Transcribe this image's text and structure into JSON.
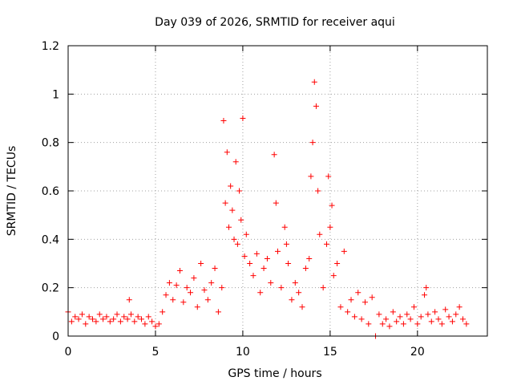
{
  "chart_data": {
    "type": "scatter",
    "title": "Day 039 of 2026, SRMTID for receiver aqui",
    "xlabel": "GPS time / hours",
    "ylabel": "SRMTID / TECUs",
    "xlim": [
      0,
      24
    ],
    "ylim": [
      0,
      1.2
    ],
    "xticks": [
      {
        "value": 0,
        "label": "0"
      },
      {
        "value": 5,
        "label": "5"
      },
      {
        "value": 10,
        "label": "10"
      },
      {
        "value": 15,
        "label": "15"
      },
      {
        "value": 20,
        "label": "20"
      }
    ],
    "yticks": [
      {
        "value": 0,
        "label": "0"
      },
      {
        "value": 0.2,
        "label": "0.2"
      },
      {
        "value": 0.4,
        "label": "0.4"
      },
      {
        "value": 0.6,
        "label": "0.6"
      },
      {
        "value": 0.8,
        "label": "0.8"
      },
      {
        "value": 1.0,
        "label": "1"
      },
      {
        "value": 1.2,
        "label": "1.2"
      }
    ],
    "grid": true,
    "marker": "+",
    "color": "#ff0000",
    "series": [
      {
        "name": "SRMTID",
        "x": [
          0.0,
          0.2,
          0.4,
          0.6,
          0.8,
          1.0,
          1.2,
          1.4,
          1.6,
          1.8,
          2.0,
          2.2,
          2.4,
          2.6,
          2.8,
          3.0,
          3.2,
          3.4,
          3.5,
          3.6,
          3.8,
          4.0,
          4.2,
          4.4,
          4.6,
          4.8,
          5.0,
          5.2,
          5.4,
          5.6,
          5.8,
          6.0,
          6.2,
          6.4,
          6.6,
          6.8,
          7.0,
          7.2,
          7.4,
          7.6,
          7.8,
          8.0,
          8.2,
          8.4,
          8.6,
          8.8,
          8.9,
          9.0,
          9.1,
          9.2,
          9.3,
          9.4,
          9.5,
          9.6,
          9.7,
          9.8,
          9.9,
          10.0,
          10.1,
          10.2,
          10.4,
          10.6,
          10.8,
          11.0,
          11.2,
          11.4,
          11.6,
          11.8,
          11.9,
          12.0,
          12.2,
          12.4,
          12.5,
          12.6,
          12.8,
          13.0,
          13.2,
          13.4,
          13.6,
          13.8,
          13.9,
          14.0,
          14.1,
          14.2,
          14.3,
          14.4,
          14.6,
          14.8,
          14.9,
          15.0,
          15.1,
          15.2,
          15.4,
          15.6,
          15.8,
          16.0,
          16.2,
          16.4,
          16.6,
          16.8,
          17.0,
          17.2,
          17.4,
          17.6,
          17.8,
          18.0,
          18.2,
          18.4,
          18.6,
          18.8,
          19.0,
          19.2,
          19.4,
          19.6,
          19.8,
          20.0,
          20.2,
          20.4,
          20.5,
          20.6,
          20.8,
          21.0,
          21.2,
          21.4,
          21.6,
          21.8,
          22.0,
          22.2,
          22.4,
          22.6,
          22.8
        ],
        "y": [
          0.1,
          0.06,
          0.08,
          0.07,
          0.09,
          0.05,
          0.08,
          0.07,
          0.06,
          0.09,
          0.07,
          0.08,
          0.06,
          0.07,
          0.09,
          0.06,
          0.08,
          0.07,
          0.15,
          0.09,
          0.06,
          0.08,
          0.07,
          0.05,
          0.08,
          0.06,
          0.04,
          0.05,
          0.1,
          0.17,
          0.22,
          0.15,
          0.21,
          0.27,
          0.14,
          0.2,
          0.18,
          0.24,
          0.12,
          0.3,
          0.19,
          0.15,
          0.22,
          0.28,
          0.1,
          0.2,
          0.89,
          0.55,
          0.76,
          0.45,
          0.62,
          0.52,
          0.4,
          0.72,
          0.38,
          0.6,
          0.48,
          0.9,
          0.33,
          0.42,
          0.3,
          0.25,
          0.34,
          0.18,
          0.28,
          0.32,
          0.22,
          0.75,
          0.55,
          0.35,
          0.2,
          0.45,
          0.38,
          0.3,
          0.15,
          0.22,
          0.18,
          0.12,
          0.28,
          0.32,
          0.66,
          0.8,
          1.05,
          0.95,
          0.6,
          0.42,
          0.2,
          0.38,
          0.66,
          0.45,
          0.54,
          0.25,
          0.3,
          0.12,
          0.35,
          0.1,
          0.15,
          0.08,
          0.18,
          0.07,
          0.14,
          0.05,
          0.16,
          0.0,
          0.09,
          0.05,
          0.07,
          0.04,
          0.1,
          0.06,
          0.08,
          0.05,
          0.09,
          0.07,
          0.12,
          0.05,
          0.08,
          0.17,
          0.2,
          0.09,
          0.06,
          0.1,
          0.07,
          0.05,
          0.11,
          0.08,
          0.06,
          0.09,
          0.12,
          0.07,
          0.05
        ]
      }
    ]
  }
}
